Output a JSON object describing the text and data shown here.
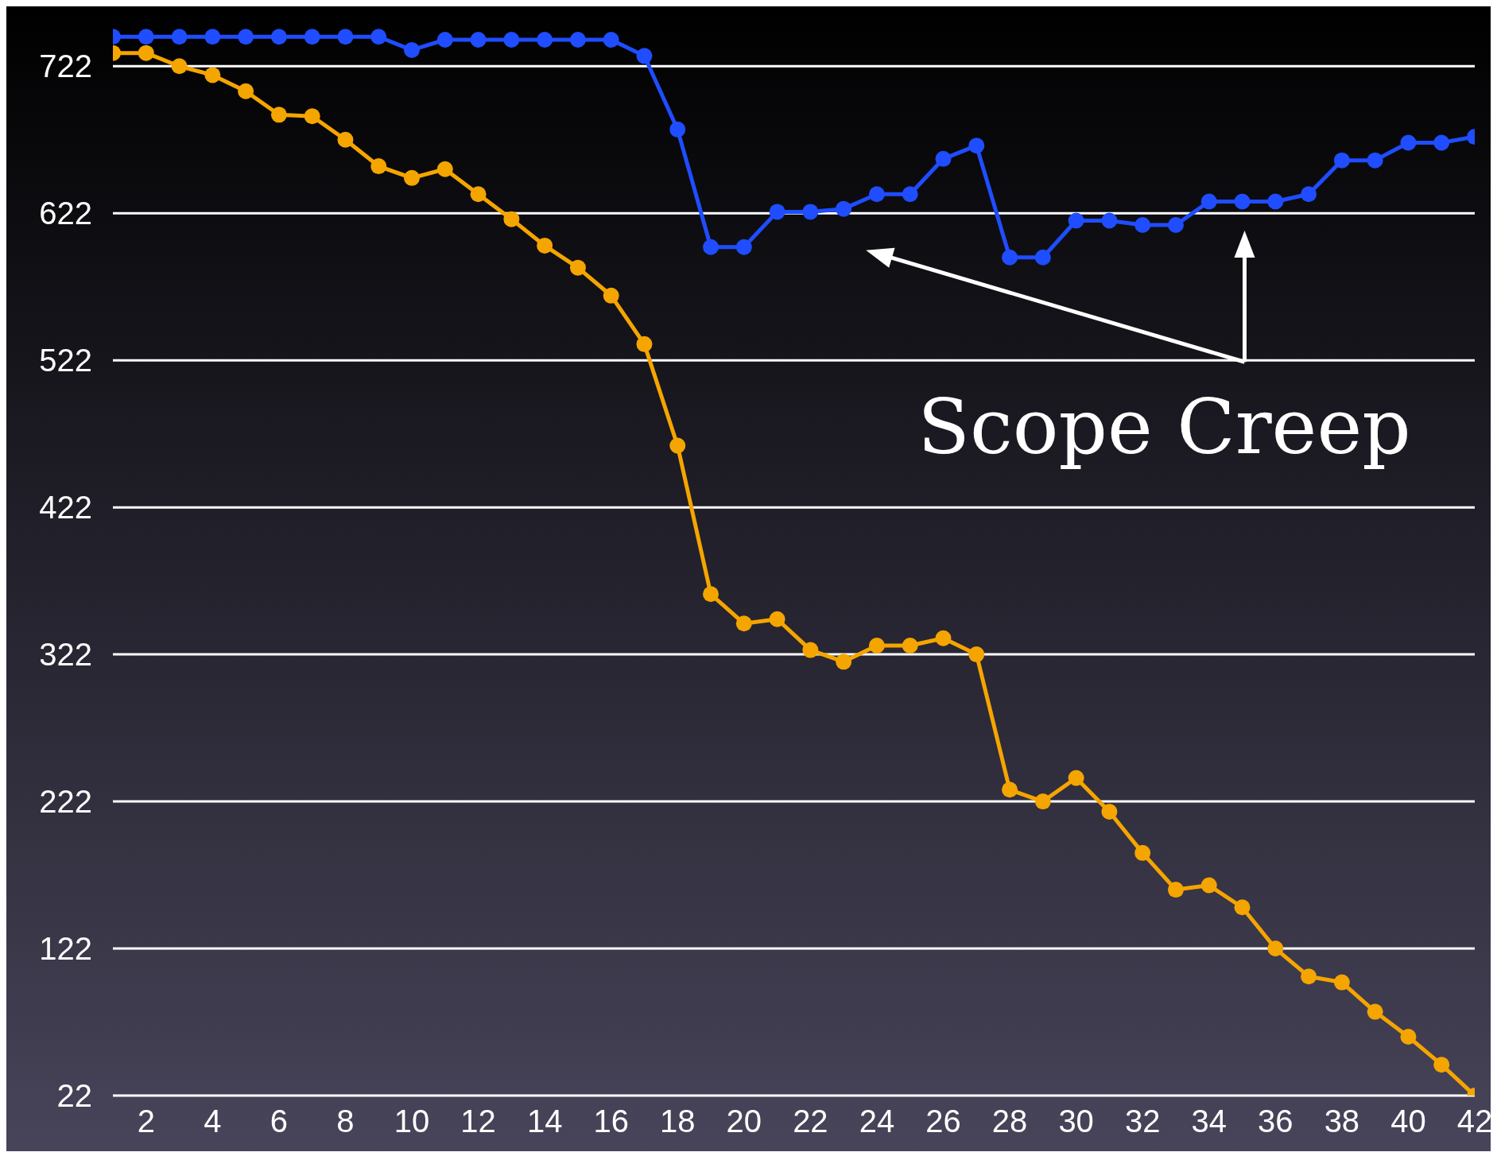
{
  "chart_data": {
    "type": "line",
    "annotations": [
      "Scope Creep"
    ],
    "x": [
      1,
      2,
      3,
      4,
      5,
      6,
      7,
      8,
      9,
      10,
      11,
      12,
      13,
      14,
      15,
      16,
      17,
      18,
      19,
      20,
      21,
      22,
      23,
      24,
      25,
      26,
      27,
      28,
      29,
      30,
      31,
      32,
      33,
      34,
      35,
      36,
      37,
      38,
      39,
      40,
      41,
      42
    ],
    "series": [
      {
        "color": "#1f4dff",
        "values": [
          742,
          742,
          742,
          742,
          742,
          742,
          742,
          742,
          742,
          733,
          740,
          740,
          740,
          740,
          740,
          740,
          729,
          679,
          599,
          599,
          623,
          623,
          625,
          635,
          635,
          659,
          668,
          592,
          592,
          617,
          617,
          614,
          614,
          630,
          630,
          630,
          635,
          658,
          658,
          670,
          670,
          674
        ]
      },
      {
        "color": "#f5a500",
        "values": [
          731,
          731,
          722,
          716,
          705,
          689,
          688,
          672,
          654,
          646,
          652,
          635,
          618,
          600,
          585,
          566,
          533,
          464,
          363,
          343,
          346,
          325,
          317,
          328,
          328,
          333,
          322,
          230,
          222,
          238,
          215,
          187,
          162,
          165,
          150,
          122,
          103,
          99,
          79,
          62,
          43,
          22
        ]
      }
    ],
    "xlim": [
      1,
      42
    ],
    "xticks": [
      2,
      4,
      6,
      8,
      10,
      12,
      14,
      16,
      18,
      20,
      22,
      24,
      26,
      28,
      30,
      32,
      34,
      36,
      38,
      40,
      42
    ],
    "ylim": [
      22,
      760
    ],
    "yticks": [
      22,
      122,
      222,
      322,
      422,
      522,
      622,
      722
    ],
    "grid": "y",
    "marker": "circle",
    "line_style": "solid"
  }
}
